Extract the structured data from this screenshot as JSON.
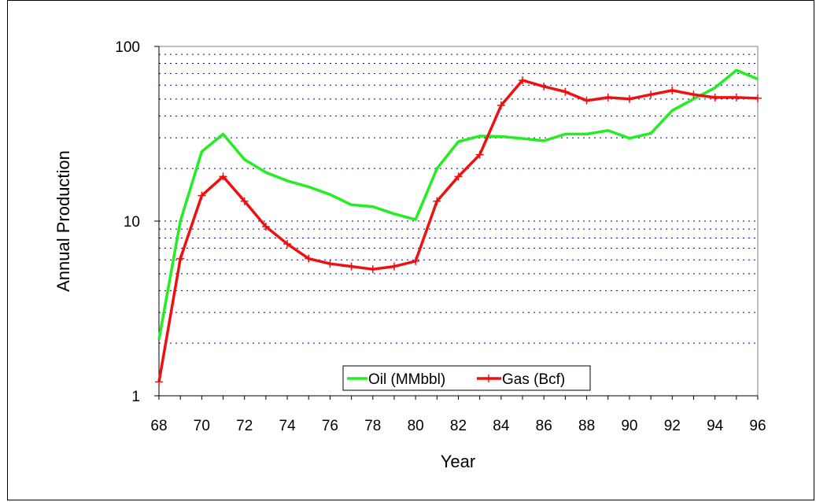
{
  "chart_data": {
    "type": "line",
    "title": "",
    "xlabel": "Year",
    "ylabel": "Annual Production",
    "x": [
      68,
      69,
      70,
      71,
      72,
      73,
      74,
      75,
      76,
      77,
      78,
      79,
      80,
      81,
      82,
      83,
      84,
      85,
      86,
      87,
      88,
      89,
      90,
      91,
      92,
      93,
      94,
      95,
      96
    ],
    "x_tick_labels": [
      "68",
      "70",
      "72",
      "74",
      "76",
      "78",
      "80",
      "82",
      "84",
      "86",
      "88",
      "90",
      "92",
      "94",
      "96"
    ],
    "y_tick_labels": [
      "1",
      "10",
      "100"
    ],
    "xlim": [
      68,
      96
    ],
    "ylim": [
      1,
      100
    ],
    "y_scale": "log",
    "grid": "horizontal dotted minor and major lines",
    "legend_placement": "bottom-center",
    "series": [
      {
        "name": "Oil (MMbbl)",
        "color": "#22ee22",
        "marker": "none",
        "values": [
          2.1,
          10.0,
          25.0,
          31.5,
          22.5,
          19.0,
          17.0,
          15.7,
          14.2,
          12.4,
          12.1,
          11.0,
          10.2,
          20.0,
          28.5,
          30.7,
          30.5,
          29.7,
          28.8,
          31.5,
          31.5,
          33.0,
          29.8,
          31.8,
          43.0,
          50.0,
          58.0,
          73.0,
          65.0
        ]
      },
      {
        "name": "Gas (Bcf)",
        "color": "#ee1111",
        "marker": "plus",
        "values": [
          1.2,
          6.1,
          14.0,
          18.0,
          13.0,
          9.3,
          7.4,
          6.1,
          5.7,
          5.5,
          5.3,
          5.5,
          5.9,
          13.0,
          18.0,
          24.0,
          46.0,
          64.0,
          59.0,
          55.0,
          49.0,
          51.0,
          50.0,
          53.0,
          56.0,
          53.0,
          51.0,
          51.0,
          50.5
        ]
      }
    ]
  }
}
